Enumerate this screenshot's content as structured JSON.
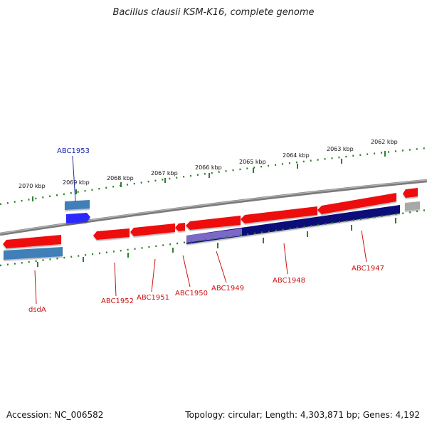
{
  "title": "Bacillus clausii KSM-K16, complete genome",
  "footer": {
    "accession": "Accession: NC_006582",
    "summary": "Topology: circular; Length: 4,303,871 bp; Genes: 4,192"
  },
  "colors": {
    "gene_red": "#ee1111",
    "gene_red_light": "#ff9a9a",
    "gene_blue_dark": "#0b0b7a",
    "gene_blue": "#2b2bff",
    "gene_steel": "#3f7fb8",
    "gene_violet": "#7b68c8",
    "gene_gray": "#a8a8a8",
    "backbone": "#8a8a8a",
    "ruler": "#2f7f2f",
    "label_red": "#cc1111",
    "label_blue": "#1a2aa8"
  },
  "scale_labels": [
    "2070 kbp",
    "2069 kbp",
    "2068 kbp",
    "2067 kbp",
    "2066 kbp",
    "2065 kbp",
    "2064 kbp",
    "2063 kbp",
    "2062 kbp"
  ],
  "gene_labels": [
    {
      "name": "ABC1953",
      "color": "blue"
    },
    {
      "name": "dsdA",
      "color": "red"
    },
    {
      "name": "ABC1952",
      "color": "red"
    },
    {
      "name": "ABC1951",
      "color": "red"
    },
    {
      "name": "ABC1950",
      "color": "red"
    },
    {
      "name": "ABC1949",
      "color": "red"
    },
    {
      "name": "ABC1948",
      "color": "red"
    },
    {
      "name": "ABC1947",
      "color": "red"
    }
  ]
}
